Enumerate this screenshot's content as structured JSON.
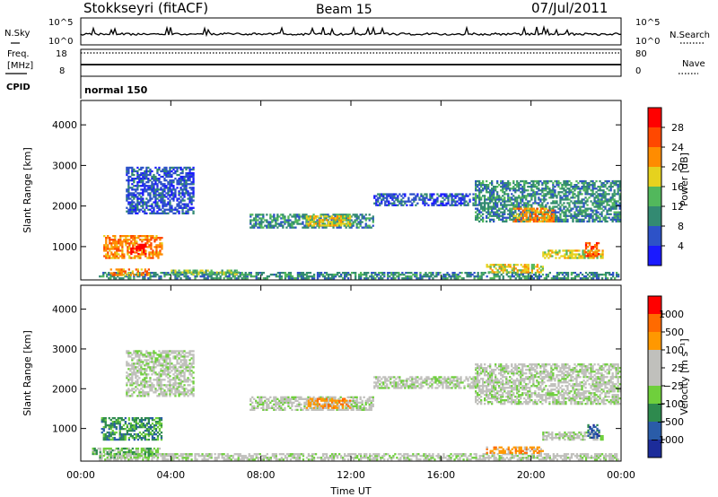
{
  "header": {
    "station": "Stokkseyri (fitACF)",
    "beam": "Beam 15",
    "date": "07/Jul/2011"
  },
  "top_panels": {
    "nsky_label": "N.Sky",
    "nsky_ticks": [
      "10^5",
      "10^0"
    ],
    "nsearch_label": "N.Search",
    "nsearch_ticks": [
      "10^5",
      "10^0"
    ],
    "freq_label_1": "Freq.",
    "freq_label_2": "[MHz]",
    "freq_ticks": [
      "18",
      "8"
    ],
    "nave_label": "Nave",
    "nave_ticks": [
      "80",
      "0"
    ],
    "cpid_label": "CPID",
    "cpid_value": "normal 150"
  },
  "x_axis": {
    "label": "Time UT",
    "ticks": [
      "00:00",
      "04:00",
      "08:00",
      "12:00",
      "16:00",
      "20:00",
      "00:00"
    ]
  },
  "chart_data": [
    {
      "type": "heatmap",
      "name": "power",
      "ylabel": "Slant Range [km]",
      "yticks": [
        "1000",
        "2000",
        "3000",
        "4000"
      ],
      "ylim": [
        180,
        4600
      ],
      "xlim_hours": [
        0,
        24
      ],
      "colorbar_label": "Power [dB]",
      "colorbar_ticks": [
        "4",
        "8",
        "12",
        "16",
        "20",
        "24",
        "28"
      ],
      "colorbar_colors": [
        "#1a1aff",
        "#2d52c8",
        "#338a72",
        "#52b85c",
        "#e6d21e",
        "#ff8c00",
        "#ff4800",
        "#ff0000"
      ],
      "regions": [
        {
          "t0": 0.8,
          "t1": 23.9,
          "r0": 200,
          "r1": 380,
          "level": 2
        },
        {
          "t0": 1.0,
          "t1": 3.6,
          "r0": 700,
          "r1": 1250,
          "level": 5
        },
        {
          "t0": 2.2,
          "t1": 2.9,
          "r0": 800,
          "r1": 1050,
          "level": 7
        },
        {
          "t0": 1.3,
          "t1": 3.0,
          "r0": 280,
          "r1": 420,
          "level": 5
        },
        {
          "t0": 2.0,
          "t1": 5.0,
          "r0": 1800,
          "r1": 2950,
          "level": 1
        },
        {
          "t0": 7.5,
          "t1": 13.0,
          "r0": 1450,
          "r1": 1800,
          "level": 2
        },
        {
          "t0": 10.0,
          "t1": 12.0,
          "r0": 1500,
          "r1": 1750,
          "level": 4
        },
        {
          "t0": 13.0,
          "t1": 17.5,
          "r0": 2000,
          "r1": 2300,
          "level": 1
        },
        {
          "t0": 17.5,
          "t1": 23.9,
          "r0": 1600,
          "r1": 2600,
          "level": 2
        },
        {
          "t0": 19.2,
          "t1": 21.0,
          "r0": 1600,
          "r1": 1950,
          "level": 5
        },
        {
          "t0": 18.0,
          "t1": 20.5,
          "r0": 350,
          "r1": 550,
          "level": 4
        },
        {
          "t0": 20.5,
          "t1": 23.2,
          "r0": 700,
          "r1": 900,
          "level": 4
        },
        {
          "t0": 22.4,
          "t1": 23.0,
          "r0": 750,
          "r1": 1100,
          "level": 6
        },
        {
          "t0": 4.0,
          "t1": 7.0,
          "r0": 300,
          "r1": 400,
          "level": 3
        }
      ]
    },
    {
      "type": "heatmap",
      "name": "velocity",
      "ylabel": "Slant Range [km]",
      "yticks": [
        "1000",
        "2000",
        "3000",
        "4000"
      ],
      "ylim": [
        180,
        4600
      ],
      "xlim_hours": [
        0,
        24
      ],
      "colorbar_label": "Velocity [m s⁻¹]",
      "colorbar_ticks": [
        "1000",
        "500",
        "100",
        "25",
        "−25",
        "−100",
        "−500",
        "−1000"
      ],
      "colorbar_colors": [
        "#1c2c9a",
        "#2a5ca8",
        "#2e8a4e",
        "#6fcf3c",
        "#c0c0bc",
        "#c0c0bc",
        "#ff9800",
        "#ff6a00",
        "#ff0000"
      ],
      "regions": [
        {
          "t0": 0.8,
          "t1": 23.9,
          "r0": 200,
          "r1": 380,
          "level": 4
        },
        {
          "t0": 0.9,
          "t1": 3.6,
          "r0": 700,
          "r1": 1250,
          "level": 2
        },
        {
          "t0": 0.5,
          "t1": 3.5,
          "r0": 250,
          "r1": 500,
          "level": 3
        },
        {
          "t0": 2.0,
          "t1": 5.0,
          "r0": 1800,
          "r1": 2950,
          "level": 4
        },
        {
          "t0": 7.5,
          "t1": 13.0,
          "r0": 1450,
          "r1": 1800,
          "level": 4
        },
        {
          "t0": 10.0,
          "t1": 12.0,
          "r0": 1500,
          "r1": 1750,
          "level": 6
        },
        {
          "t0": 13.0,
          "t1": 17.5,
          "r0": 2000,
          "r1": 2300,
          "level": 4
        },
        {
          "t0": 17.5,
          "t1": 23.9,
          "r0": 1600,
          "r1": 2600,
          "level": 4
        },
        {
          "t0": 18.0,
          "t1": 20.5,
          "r0": 370,
          "r1": 520,
          "level": 6
        },
        {
          "t0": 20.5,
          "t1": 23.2,
          "r0": 700,
          "r1": 900,
          "level": 4
        },
        {
          "t0": 22.5,
          "t1": 23.0,
          "r0": 750,
          "r1": 1100,
          "level": 1
        }
      ]
    }
  ]
}
